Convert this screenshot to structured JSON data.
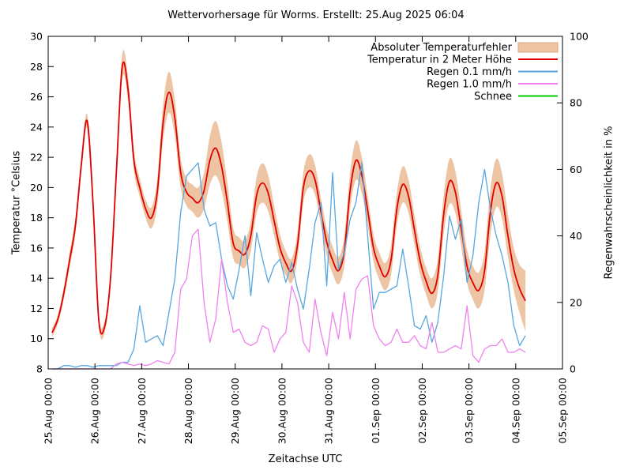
{
  "title": "Wettervorhersage für Worms. Erstellt: 25.Aug 2025 06:04",
  "chart_data": {
    "type": "line",
    "title": "Wettervorhersage für Worms. Erstellt: 25.Aug 2025 06:04",
    "x_axis": {
      "label": "Zeitachse UTC",
      "tick_labels": [
        "25.Aug 00:00",
        "26.Aug 00:00",
        "27.Aug 00:00",
        "28.Aug 00:00",
        "29.Aug 00:00",
        "30.Aug 00:00",
        "31.Aug 00:00",
        "01.Sep 00:00",
        "02.Sep 00:00",
        "03.Sep 00:00",
        "04.Sep 00:00",
        "05.Sep 00:00"
      ],
      "range_hours": [
        0,
        264
      ],
      "tick_step_hours": 24
    },
    "y_left": {
      "label": "Temperatur °Celsius",
      "min": 8,
      "max": 30,
      "tick_step": 2
    },
    "y_right": {
      "label": "Regenwahrscheinlichkeit in %",
      "min": 0,
      "max": 100,
      "tick_step": 20
    },
    "grid": false,
    "legend_position": "top-right-inside",
    "legend": [
      {
        "label": "Absoluter Temperaturfehler",
        "color": "#edc5a4",
        "border": "#dca87f",
        "type": "band"
      },
      {
        "label": "Temperatur in 2 Meter Höhe",
        "color": "#e00000",
        "type": "line"
      },
      {
        "label": "Regen 0.1 mm/h",
        "color": "#58a6e0",
        "type": "line"
      },
      {
        "label": "Regen 1.0 mm/h",
        "color": "#ee82ee",
        "type": "line"
      },
      {
        "label": "Schnee",
        "color": "#00cc00",
        "type": "line"
      }
    ],
    "series": {
      "hours": [
        2,
        5,
        8,
        11,
        14,
        17,
        20,
        23,
        26,
        29,
        32,
        35,
        38,
        41,
        44,
        47,
        50,
        53,
        56,
        59,
        62,
        65,
        68,
        71,
        74,
        77,
        80,
        83,
        86,
        89,
        92,
        95,
        98,
        101,
        104,
        107,
        110,
        113,
        116,
        119,
        122,
        125,
        128,
        131,
        134,
        137,
        140,
        143,
        146,
        149,
        152,
        155,
        158,
        161,
        164,
        167,
        170,
        173,
        176,
        179,
        182,
        185,
        188,
        191,
        194,
        197,
        200,
        203,
        206,
        209,
        212,
        215,
        218,
        221,
        224,
        227,
        230,
        233,
        236,
        239,
        242,
        245
      ],
      "temperature": [
        10.4,
        11.3,
        13.0,
        15.2,
        17.5,
        21.5,
        24.4,
        19.0,
        11.2,
        10.8,
        14.0,
        21.0,
        28.0,
        26.5,
        21.8,
        20.0,
        18.6,
        18.0,
        19.7,
        24.3,
        26.3,
        24.6,
        21.0,
        19.7,
        19.3,
        19.0,
        19.8,
        21.8,
        22.6,
        21.4,
        19.0,
        16.3,
        15.8,
        15.6,
        16.8,
        19.5,
        20.3,
        19.6,
        17.8,
        16.0,
        15.0,
        14.5,
        16.2,
        20.0,
        21.1,
        20.5,
        18.4,
        16.4,
        15.2,
        14.5,
        15.8,
        19.8,
        21.8,
        20.8,
        18.5,
        16.0,
        14.8,
        14.1,
        15.2,
        18.6,
        20.2,
        19.4,
        17.2,
        15.1,
        13.8,
        13.0,
        14.2,
        18.2,
        20.4,
        19.7,
        17.3,
        14.8,
        13.7,
        13.2,
        14.5,
        18.4,
        20.3,
        19.4,
        16.8,
        14.6,
        13.3,
        12.5
      ],
      "temperature_error": [
        0.3,
        0.3,
        0.4,
        0.5,
        0.55,
        0.5,
        0.45,
        0.35,
        0.35,
        0.4,
        0.5,
        0.7,
        0.8,
        0.8,
        0.7,
        0.6,
        0.6,
        0.7,
        0.9,
        1.2,
        1.35,
        1.2,
        1.0,
        0.9,
        0.9,
        1.0,
        1.2,
        1.6,
        1.8,
        1.6,
        1.3,
        1.0,
        0.9,
        0.9,
        1.0,
        1.2,
        1.3,
        1.2,
        1.0,
        0.9,
        0.8,
        0.8,
        0.9,
        1.0,
        1.1,
        1.0,
        0.9,
        0.9,
        0.9,
        0.9,
        1.0,
        1.2,
        1.3,
        1.2,
        1.0,
        0.9,
        0.9,
        0.9,
        1.0,
        1.1,
        1.2,
        1.1,
        1.0,
        0.9,
        0.9,
        1.0,
        1.1,
        1.3,
        1.5,
        1.4,
        1.2,
        1.1,
        1.1,
        1.2,
        1.3,
        1.5,
        1.6,
        1.5,
        1.4,
        1.4,
        1.6,
        2.0
      ],
      "rain_01": [
        0,
        0,
        1,
        1,
        0.5,
        1,
        1,
        0.5,
        1,
        1,
        1,
        1,
        2,
        2,
        6,
        19,
        8,
        9,
        10,
        7,
        17,
        27,
        47,
        58,
        60,
        62,
        48,
        43,
        44,
        33,
        25,
        21,
        30,
        40,
        22,
        41,
        33,
        26,
        31,
        33,
        26,
        32,
        24,
        18,
        30,
        44,
        50,
        25,
        59,
        30,
        35,
        45,
        50,
        62,
        40,
        18,
        23,
        23,
        24,
        25,
        36,
        25,
        13,
        12,
        16,
        8,
        14,
        28,
        46,
        39,
        45,
        26,
        34,
        50,
        60,
        48,
        40,
        34,
        26,
        13,
        7,
        10
      ],
      "rain_10": [
        0,
        0,
        0,
        0,
        0,
        0,
        0,
        0,
        0,
        0,
        0,
        1.5,
        2,
        1.5,
        1,
        1.5,
        1,
        1.5,
        2.5,
        2,
        1.5,
        5,
        24,
        27,
        40,
        42,
        20,
        8,
        15,
        33,
        20,
        11,
        12,
        8,
        7,
        8,
        13,
        12,
        5,
        9,
        11,
        25,
        20,
        8,
        5,
        21,
        11,
        4,
        17,
        9,
        23,
        9,
        24,
        27,
        28,
        13,
        9,
        7,
        8,
        12,
        8,
        8,
        10,
        7,
        6,
        14,
        5,
        5,
        6,
        7,
        6,
        19,
        4,
        2,
        6,
        7,
        7,
        9,
        5,
        5,
        6,
        5
      ],
      "snow": []
    }
  }
}
